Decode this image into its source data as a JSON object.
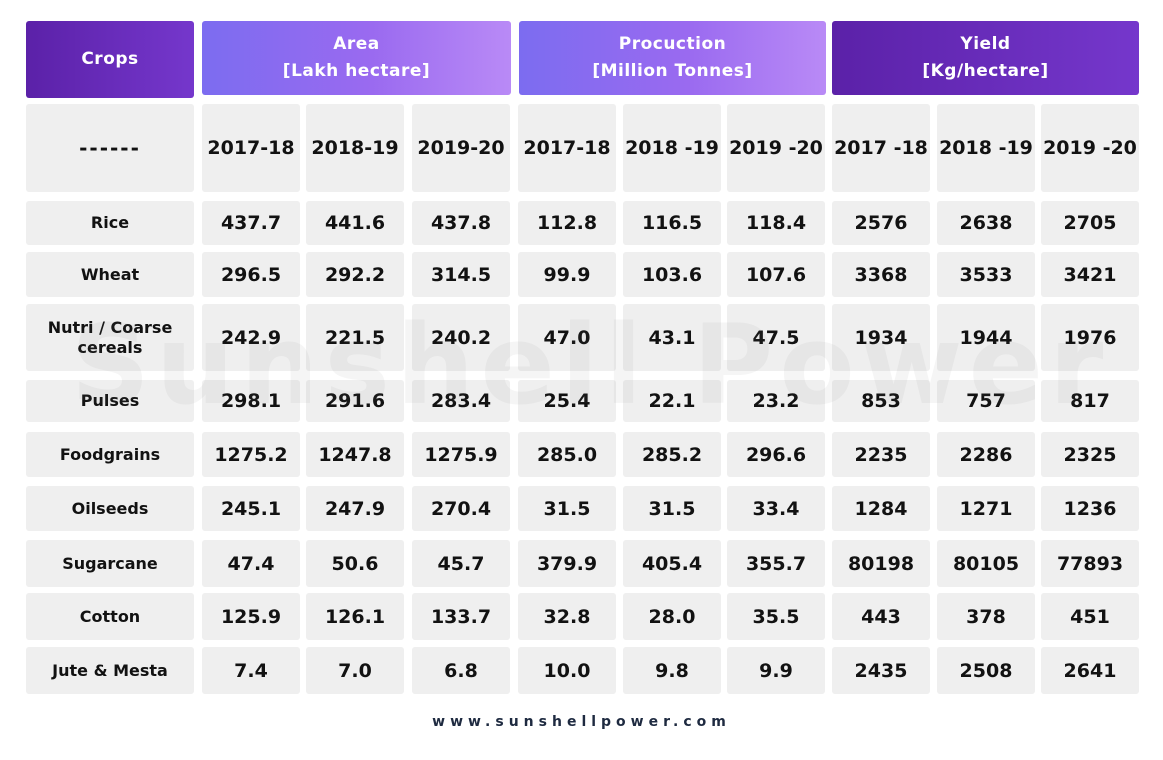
{
  "chart_data": {
    "type": "table",
    "header_crops": "Crops",
    "groups": [
      {
        "line1": "Area",
        "line2": "[Lakh hectare]"
      },
      {
        "line1": "Procuction",
        "line2": "[Million Tonnes]"
      },
      {
        "line1": "Yield",
        "line2": "[Kg/hectare]"
      }
    ],
    "dash": "------",
    "years": [
      "2017-18",
      "2018-19",
      "2019-20",
      "2017-18",
      "2018 -19",
      "2019 -20",
      "2017 -18",
      "2018 -19",
      "2019 -20"
    ],
    "rows": [
      {
        "crop": "Rice",
        "values": [
          "437.7",
          "441.6",
          "437.8",
          "112.8",
          "116.5",
          "118.4",
          "2576",
          "2638",
          "2705"
        ]
      },
      {
        "crop": "Wheat",
        "values": [
          "296.5",
          "292.2",
          "314.5",
          "99.9",
          "103.6",
          "107.6",
          "3368",
          "3533",
          "3421"
        ]
      },
      {
        "crop": "Nutri / Coarse cereals",
        "values": [
          "242.9",
          "221.5",
          "240.2",
          "47.0",
          "43.1",
          "47.5",
          "1934",
          "1944",
          "1976"
        ]
      },
      {
        "crop": "Pulses",
        "values": [
          "298.1",
          "291.6",
          "283.4",
          "25.4",
          "22.1",
          "23.2",
          "853",
          "757",
          "817"
        ]
      },
      {
        "crop": "Foodgrains",
        "values": [
          "1275.2",
          "1247.8",
          "1275.9",
          "285.0",
          "285.2",
          "296.6",
          "2235",
          "2286",
          "2325"
        ]
      },
      {
        "crop": "Oilseeds",
        "values": [
          "245.1",
          "247.9",
          "270.4",
          "31.5",
          "31.5",
          "33.4",
          "1284",
          "1271",
          "1236"
        ]
      },
      {
        "crop": "Sugarcane",
        "values": [
          "47.4",
          "50.6",
          "45.7",
          "379.9",
          "405.4",
          "355.7",
          "80198",
          "80105",
          "77893"
        ]
      },
      {
        "crop": "Cotton",
        "values": [
          "125.9",
          "126.1",
          "133.7",
          "32.8",
          "28.0",
          "35.5",
          "443",
          "378",
          "451"
        ]
      },
      {
        "crop": "Jute & Mesta",
        "values": [
          "7.4",
          "7.0",
          "6.8",
          "10.0",
          "9.8",
          "9.9",
          "2435",
          "2508",
          "2641"
        ]
      }
    ]
  },
  "watermark": "Sunshell Power",
  "footer": {
    "url": "www.sunshellpower.com"
  },
  "colors": {
    "header_dark": "#5b21a8",
    "header_light": "#9a6af0",
    "cell_bg": "#efefef",
    "footer_text": "#1e2a40"
  }
}
